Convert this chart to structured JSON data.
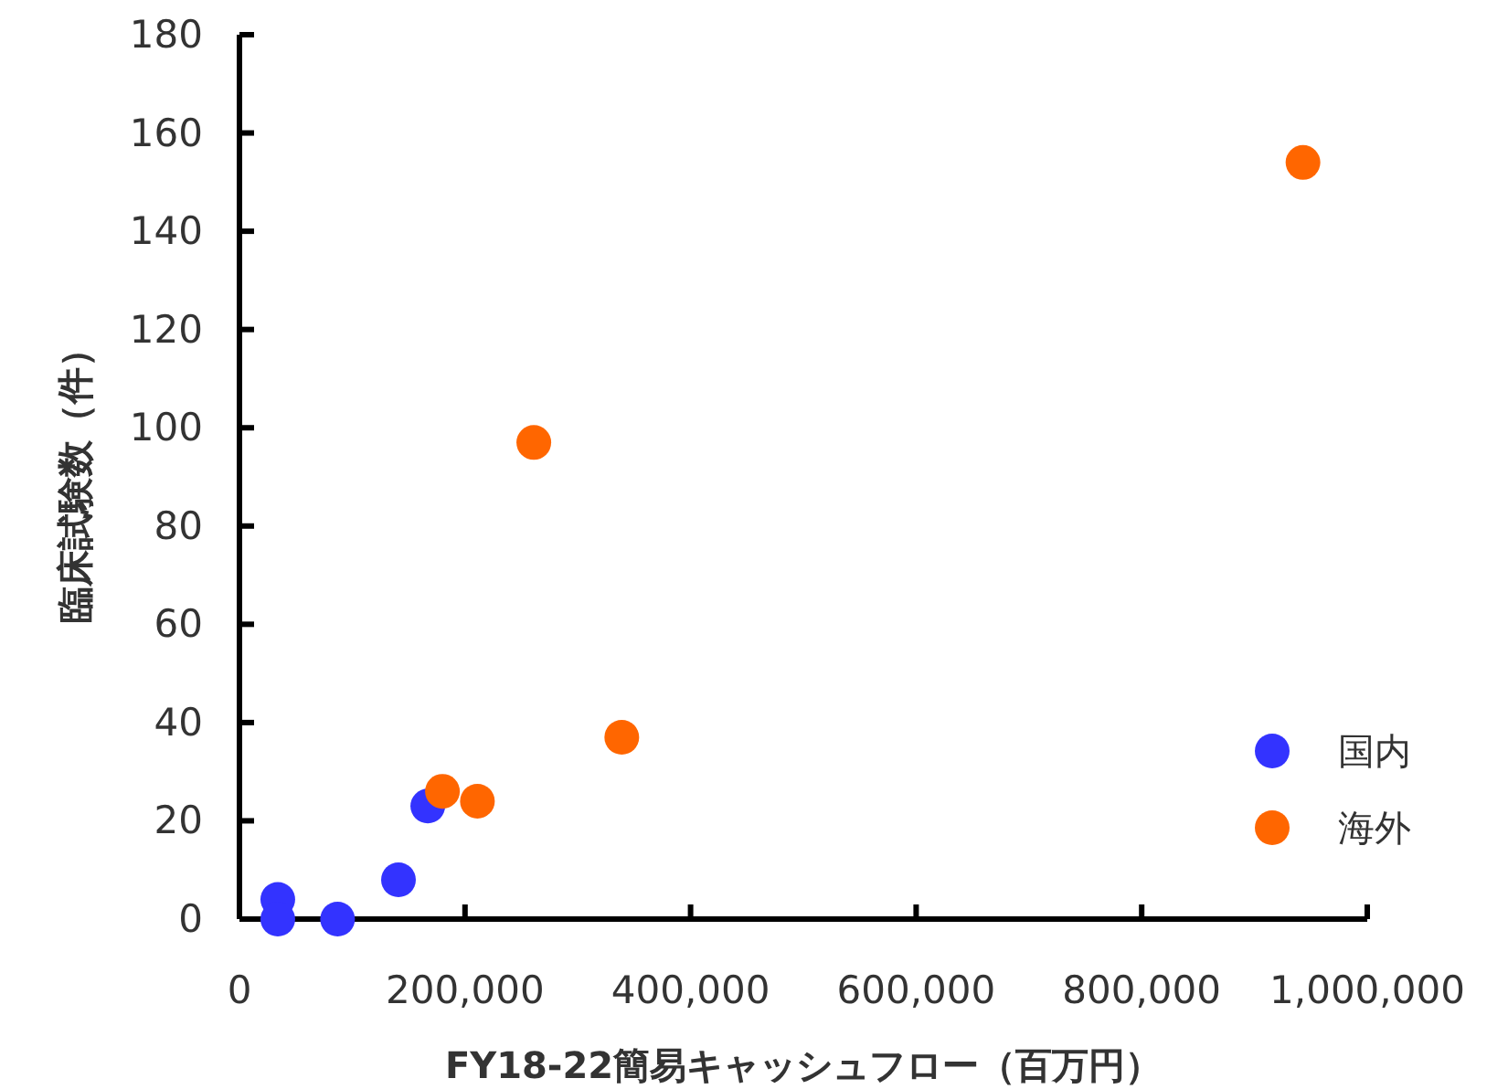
{
  "chart_data": {
    "type": "scatter",
    "xlabel": "FY18-22簡易キャッシュフロー（百万円）",
    "ylabel": "臨床試験数（件）",
    "xlim": [
      0,
      1000000
    ],
    "xticks": [
      {
        "value": 0,
        "label": "0"
      },
      {
        "value": 200000,
        "label": "200,000"
      },
      {
        "value": 400000,
        "label": "400,000"
      },
      {
        "value": 600000,
        "label": "600,000"
      },
      {
        "value": 800000,
        "label": "800,000"
      },
      {
        "value": 1000000,
        "label": "1,000,000"
      }
    ],
    "ylim": [
      0,
      180
    ],
    "yticks": [
      0,
      20,
      40,
      60,
      80,
      100,
      120,
      140,
      160,
      180
    ],
    "grid": false,
    "legend": "right",
    "marker": "circle",
    "series": [
      {
        "name": "国内",
        "color": "#3333ff",
        "x": [
          34000,
          34000,
          87000,
          141000,
          167000
        ],
        "values": [
          4,
          0,
          0,
          8,
          23
        ]
      },
      {
        "name": "海外",
        "color": "#ff6600",
        "x": [
          180000,
          211000,
          261000,
          339000,
          943000
        ],
        "values": [
          26,
          24,
          97,
          37,
          154
        ]
      }
    ]
  }
}
